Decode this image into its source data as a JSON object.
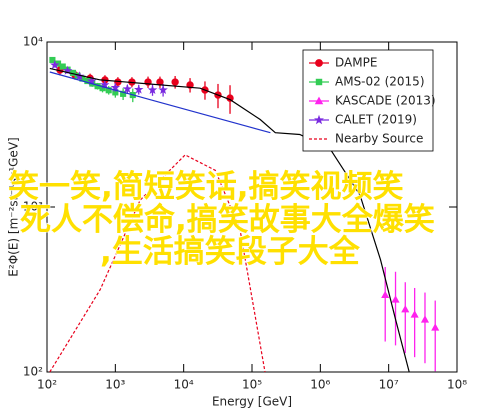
{
  "chart_data": {
    "type": "scatter",
    "xlabel": "Energy [GeV]",
    "ylabel": "E²Φ(E) [m⁻²sr⁻¹s⁻¹GeV]",
    "xscale": "log",
    "yscale": "log",
    "xlim": [
      100,
      100000000
    ],
    "ylim": [
      100,
      10000
    ],
    "xticks": [
      {
        "value": 100,
        "label": "10²"
      },
      {
        "value": 1000,
        "label": "10³"
      },
      {
        "value": 10000,
        "label": "10⁴"
      },
      {
        "value": 100000,
        "label": "10⁵"
      },
      {
        "value": 1000000,
        "label": "10⁶"
      },
      {
        "value": 10000000,
        "label": "10⁷"
      },
      {
        "value": 100000000,
        "label": "10⁸"
      }
    ],
    "yticks": [
      {
        "value": 100,
        "label": "10²"
      },
      {
        "value": 1000,
        "label": "10³"
      },
      {
        "value": 10000,
        "label": "10⁴"
      }
    ],
    "legend": "upper right",
    "series": [
      {
        "name": "DAMPE",
        "color": "#e8001c",
        "marker": "circle",
        "x": [
          155,
          257,
          427,
          705,
          1090,
          1750,
          3010,
          4500,
          7500,
          12400,
          20500,
          31800,
          47700
        ],
        "values": [
          6770,
          6310,
          6030,
          5890,
          5720,
          5720,
          5720,
          5720,
          5720,
          5490,
          5120,
          4770,
          4570
        ],
        "errors": [
          500,
          400,
          400,
          400,
          400,
          400,
          450,
          450,
          500,
          550,
          650,
          800,
          900
        ]
      },
      {
        "name": "AMS-02 (2015)",
        "color": "#33cc55",
        "marker": "square",
        "x": [
          120,
          145,
          170,
          200,
          240,
          280,
          330,
          390,
          460,
          550,
          650,
          800,
          1000,
          1300,
          1800
        ],
        "values": [
          7780,
          7400,
          7100,
          6800,
          6500,
          6250,
          6000,
          5800,
          5600,
          5400,
          5250,
          5100,
          4950,
          4850,
          4770
        ],
        "errors": [
          200,
          200,
          200,
          200,
          200,
          200,
          200,
          200,
          250,
          250,
          300,
          300,
          350,
          400,
          450
        ]
      },
      {
        "name": "KASCADE (2013)",
        "color": "#ff22ee",
        "marker": "triangle",
        "x": [
          8900000,
          12600000,
          17500000,
          24000000,
          34000000,
          48000000
        ],
        "values": [
          293,
          275,
          240,
          223,
          208,
          186
        ],
        "errors": [
          140,
          130,
          110,
          100,
          95,
          85
        ]
      },
      {
        "name": "CALET (2019)",
        "color": "#7a2be0",
        "marker": "star",
        "x": [
          130,
          200,
          300,
          450,
          700,
          1000,
          1500,
          2200,
          3500,
          5000
        ],
        "values": [
          7250,
          6700,
          6200,
          5800,
          5500,
          5300,
          5200,
          5150,
          5120,
          5120
        ],
        "errors": [
          250,
          250,
          250,
          250,
          250,
          300,
          300,
          350,
          400,
          450
        ]
      },
      {
        "type": "line",
        "color": "#000000",
        "style": "solid",
        "x": [
          110,
          600,
          17400,
          48000,
          132000,
          219000,
          500000,
          1400000,
          3800000,
          7600000,
          12600000,
          20000000
        ],
        "values": [
          6920,
          5890,
          5250,
          4470,
          3390,
          2820,
          2750,
          2240,
          1180,
          479,
          209,
          100
        ]
      },
      {
        "type": "line",
        "color": "#2233cc",
        "style": "solid",
        "x": [
          110,
          3240,
          186000
        ],
        "values": [
          6580,
          4470,
          2820
        ]
      },
      {
        "name": "Nearby Source",
        "type": "line",
        "color": "#e8001c",
        "style": "dashed",
        "x": [
          110,
          600,
          2300,
          10500,
          29000,
          67000,
          155000
        ],
        "values": [
          100,
          316,
          1100,
          2070,
          1670,
          724,
          100
        ]
      }
    ],
    "annotations": [
      "笑一笑,简短笑话,搞笑视频笑",
      "死人不偿命,搞笑故事大全爆笑",
      ",生活搞笑段子大全"
    ]
  }
}
